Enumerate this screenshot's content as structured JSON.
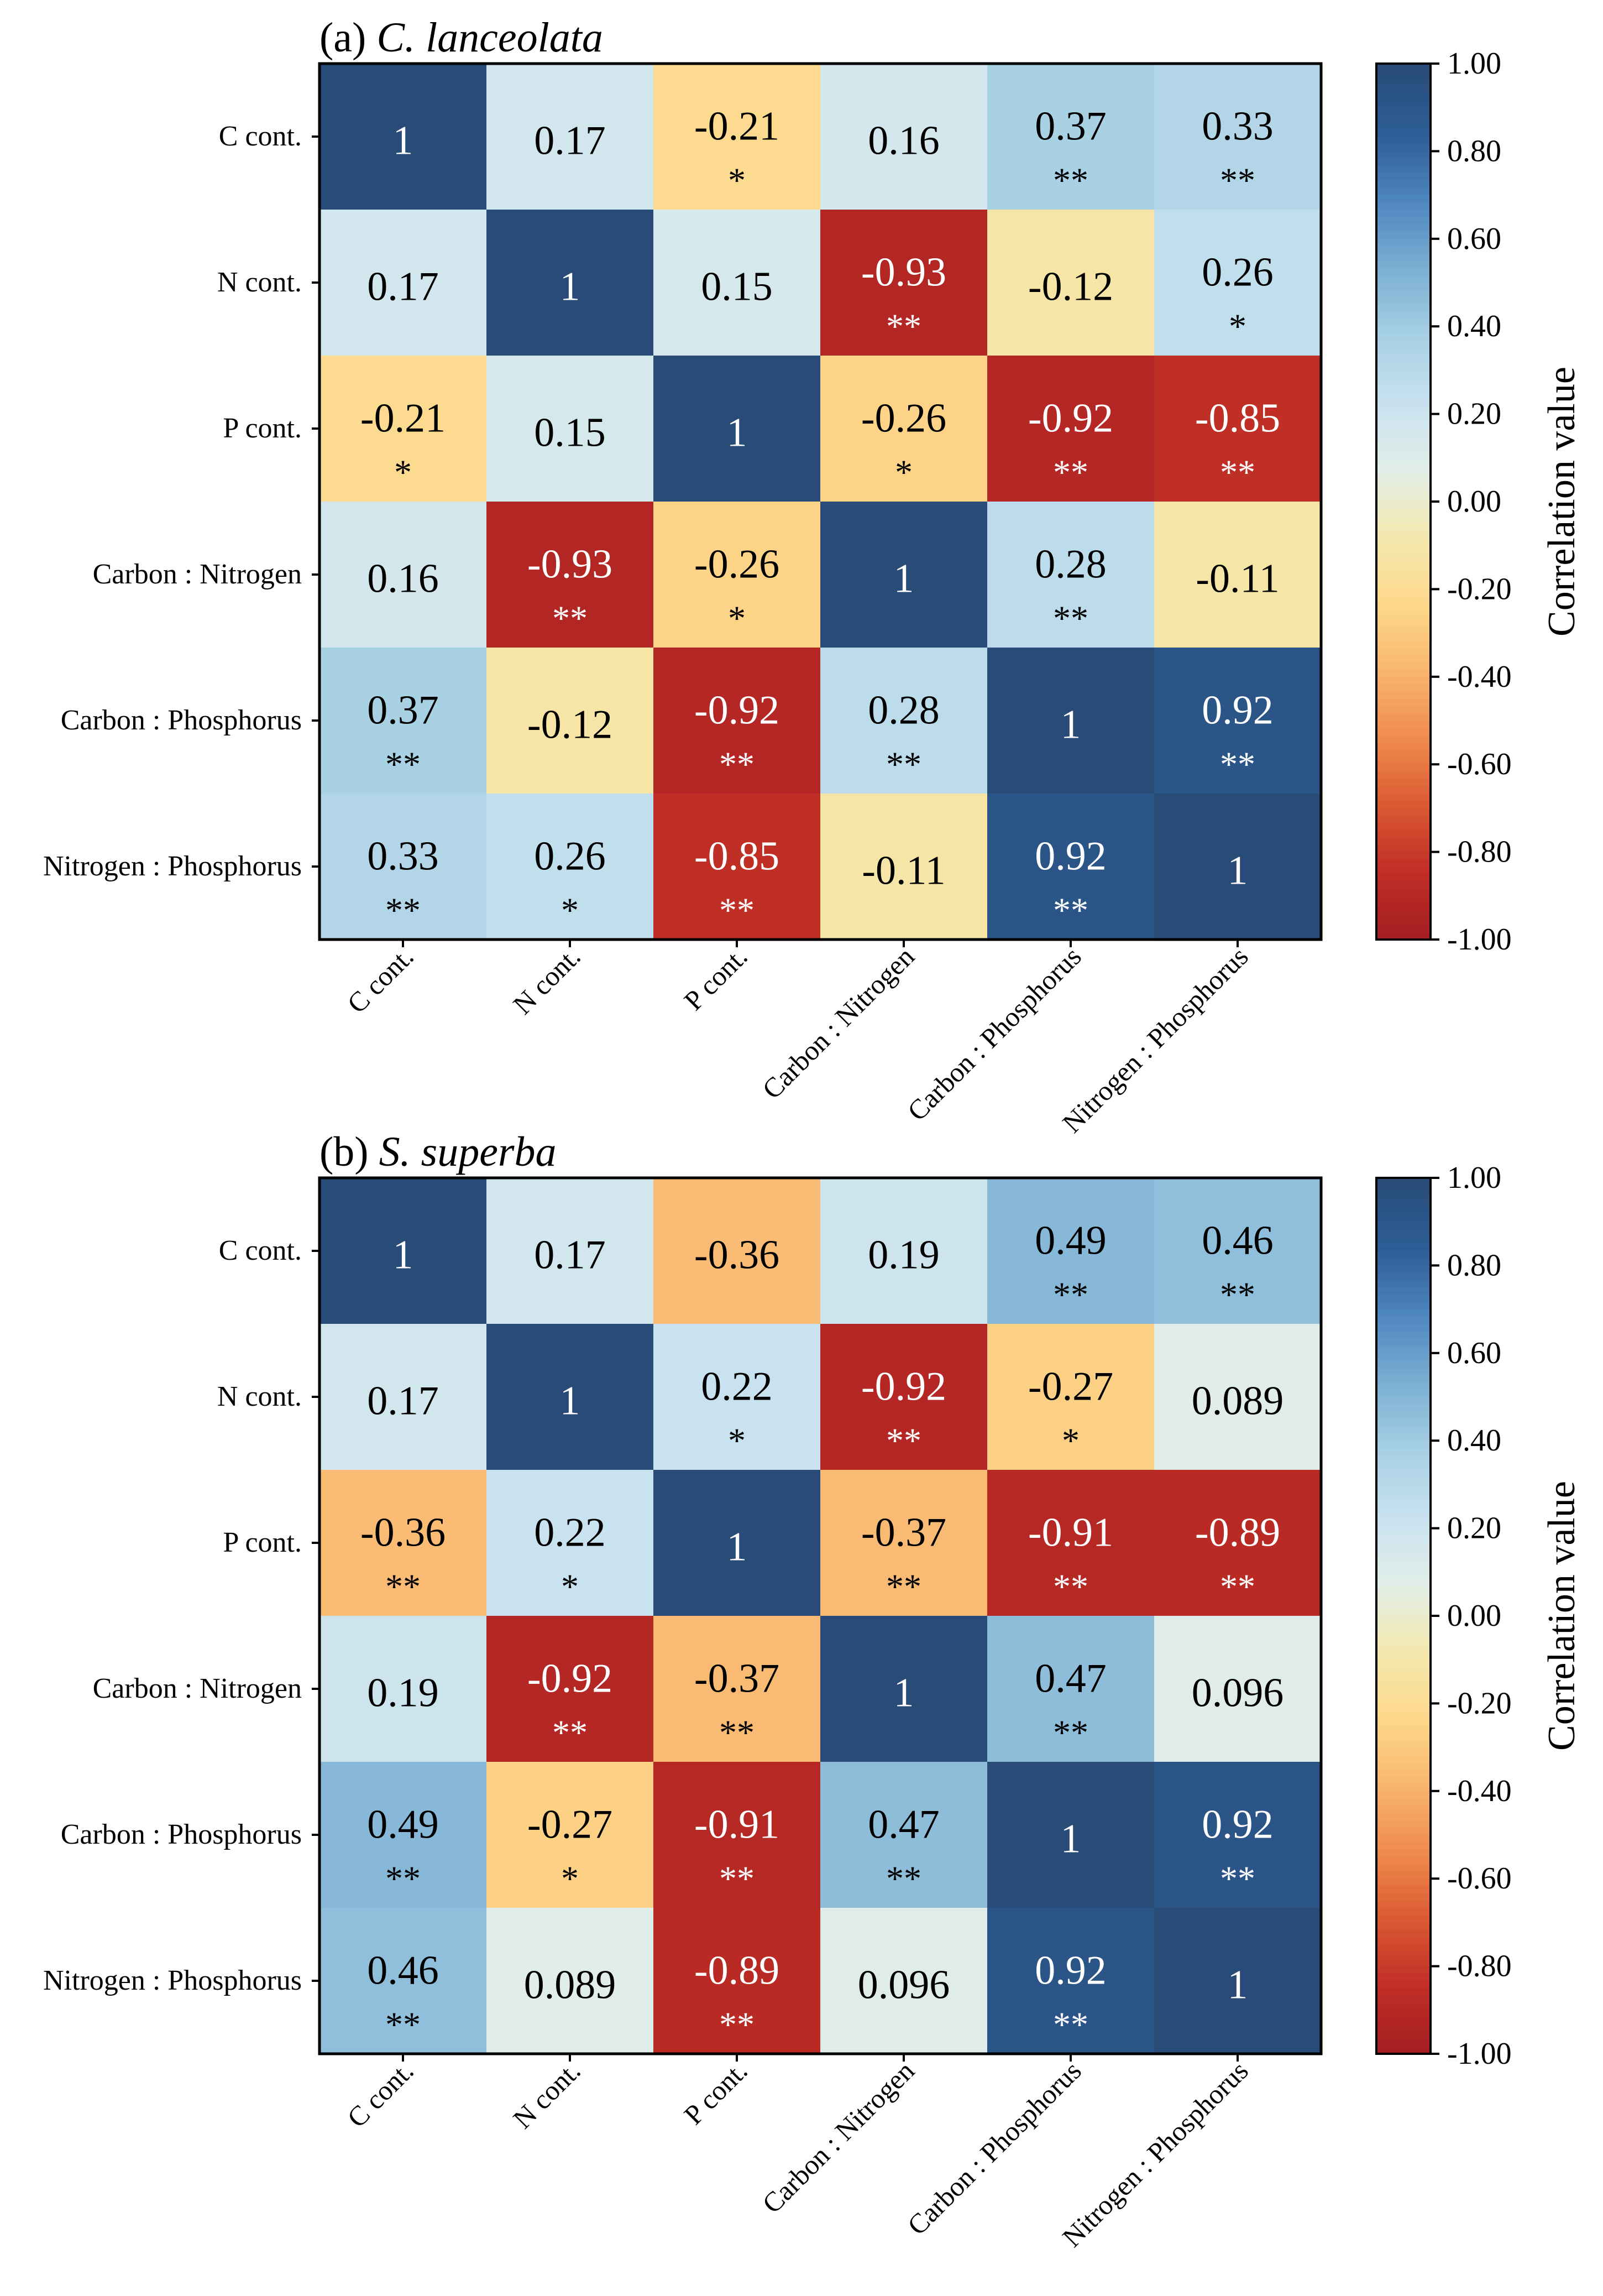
{
  "colors": {
    "scale": [
      "#a51f22",
      "#c12f26",
      "#db5b33",
      "#f08d4e",
      "#f9b771",
      "#fdd98c",
      "#f3e9b0",
      "#e2eee9",
      "#c7e1ef",
      "#a6cfe3",
      "#7aaed2",
      "#4e86bf",
      "#2d5d95",
      "#284b78"
    ],
    "text_dark": "#000000",
    "text_light": "#ffffff"
  },
  "chart_data": [
    {
      "type": "heatmap",
      "panel_label": "(a) ",
      "title": "C. lanceolata",
      "row_labels": [
        "C cont.",
        "N cont.",
        "P cont.",
        "Carbon : Nitrogen",
        "Carbon : Phosphorus",
        "Nitrogen : Phosphorus"
      ],
      "col_labels": [
        "C cont.",
        "N cont.",
        "P cont.",
        "Carbon : Nitrogen",
        "Carbon : Phosphorus",
        "Nitrogen : Phosphorus"
      ],
      "values": [
        [
          1,
          0.17,
          -0.21,
          0.16,
          0.37,
          0.33
        ],
        [
          0.17,
          1,
          0.15,
          -0.93,
          -0.12,
          0.26
        ],
        [
          -0.21,
          0.15,
          1,
          -0.26,
          -0.92,
          -0.85
        ],
        [
          0.16,
          -0.93,
          -0.26,
          1,
          0.28,
          -0.11
        ],
        [
          0.37,
          -0.12,
          -0.92,
          0.28,
          1,
          0.92
        ],
        [
          0.33,
          0.26,
          -0.85,
          -0.11,
          0.92,
          1
        ]
      ],
      "labels": [
        [
          "1",
          "0.17",
          "-0.21",
          "0.16",
          "0.37",
          "0.33"
        ],
        [
          "0.17",
          "1",
          "0.15",
          "-0.93",
          "-0.12",
          "0.26"
        ],
        [
          "-0.21",
          "0.15",
          "1",
          "-0.26",
          "-0.92",
          "-0.85"
        ],
        [
          "0.16",
          "-0.93",
          "-0.26",
          "1",
          "0.28",
          "-0.11"
        ],
        [
          "0.37",
          "-0.12",
          "-0.92",
          "0.28",
          "1",
          "0.92"
        ],
        [
          "0.33",
          "0.26",
          "-0.85",
          "-0.11",
          "0.92",
          "1"
        ]
      ],
      "significance": [
        [
          "",
          "",
          "*",
          "",
          "**",
          "**"
        ],
        [
          "",
          "",
          "",
          "**",
          "",
          "*"
        ],
        [
          "*",
          "",
          "",
          "*",
          "**",
          "**"
        ],
        [
          "",
          "**",
          "*",
          "",
          "**",
          ""
        ],
        [
          "**",
          "",
          "**",
          "**",
          "",
          "**"
        ],
        [
          "**",
          "*",
          "**",
          "",
          "**",
          ""
        ]
      ],
      "colorbar": {
        "label": "Correlation value",
        "ticks": [
          "1.00",
          "0.80",
          "0.60",
          "0.40",
          "0.20",
          "0.00",
          "-0.20",
          "-0.40",
          "-0.60",
          "-0.80",
          "-1.00"
        ],
        "range": [
          -1,
          1
        ]
      }
    },
    {
      "type": "heatmap",
      "panel_label": "(b) ",
      "title": "S. superba",
      "row_labels": [
        "C cont.",
        "N cont.",
        "P cont.",
        "Carbon : Nitrogen",
        "Carbon : Phosphorus",
        "Nitrogen : Phosphorus"
      ],
      "col_labels": [
        "C cont.",
        "N cont.",
        "P cont.",
        "Carbon : Nitrogen",
        "Carbon : Phosphorus",
        "Nitrogen : Phosphorus"
      ],
      "values": [
        [
          1,
          0.17,
          -0.36,
          0.19,
          0.49,
          0.46
        ],
        [
          0.17,
          1,
          0.22,
          -0.92,
          -0.27,
          0.089
        ],
        [
          -0.36,
          0.22,
          1,
          -0.37,
          -0.91,
          -0.89
        ],
        [
          0.19,
          -0.92,
          -0.37,
          1,
          0.47,
          0.096
        ],
        [
          0.49,
          -0.27,
          -0.91,
          0.47,
          1,
          0.92
        ],
        [
          0.46,
          0.089,
          -0.89,
          0.096,
          0.92,
          1
        ]
      ],
      "labels": [
        [
          "1",
          "0.17",
          "-0.36",
          "0.19",
          "0.49",
          "0.46"
        ],
        [
          "0.17",
          "1",
          "0.22",
          "-0.92",
          "-0.27",
          "0.089"
        ],
        [
          "-0.36",
          "0.22",
          "1",
          "-0.37",
          "-0.91",
          "-0.89"
        ],
        [
          "0.19",
          "-0.92",
          "-0.37",
          "1",
          "0.47",
          "0.096"
        ],
        [
          "0.49",
          "-0.27",
          "-0.91",
          "0.47",
          "1",
          "0.92"
        ],
        [
          "0.46",
          "0.089",
          "-0.89",
          "0.096",
          "0.92",
          "1"
        ]
      ],
      "significance": [
        [
          "",
          "",
          "",
          "",
          "**",
          "**"
        ],
        [
          "",
          "",
          "*",
          "**",
          "*",
          ""
        ],
        [
          "**",
          "*",
          "",
          "**",
          "**",
          "**"
        ],
        [
          "",
          "**",
          "**",
          "",
          "**",
          ""
        ],
        [
          "**",
          "*",
          "**",
          "**",
          "",
          "**"
        ],
        [
          "**",
          "",
          "**",
          "",
          "**",
          ""
        ]
      ],
      "colorbar": {
        "label": "Correlation value",
        "ticks": [
          "1.00",
          "0.80",
          "0.60",
          "0.40",
          "0.20",
          "0.00",
          "-0.20",
          "-0.40",
          "-0.60",
          "-0.80",
          "-1.00"
        ],
        "range": [
          -1,
          1
        ]
      }
    }
  ]
}
